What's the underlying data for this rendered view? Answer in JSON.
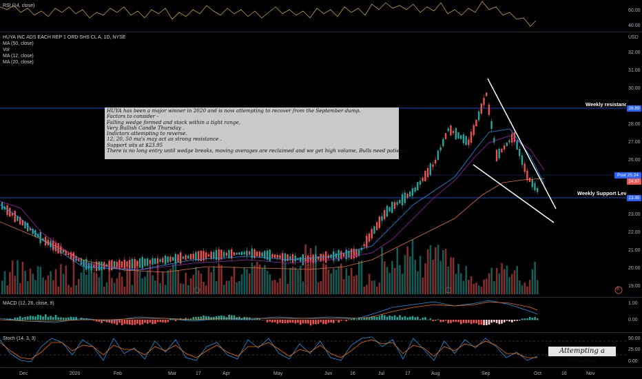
{
  "rsi": {
    "label": "RSI (14, close)",
    "axis": [
      "60.00",
      "40.00"
    ]
  },
  "main": {
    "title": "HUYA INC ADS EACH REP 1 ORD SHS CL A, 1D, NYSE",
    "indicators": [
      "MA (50, close)",
      "Vol",
      "MA (12, close)",
      "MA (20, close)"
    ],
    "currency": "USD",
    "axis": [
      "32.00",
      "31.00",
      "30.00",
      "29.00",
      "28.00",
      "27.00",
      "26.00",
      "25.00",
      "24.00",
      "23.00",
      "22.00",
      "21.00",
      "20.00",
      "19.00"
    ],
    "note": [
      "HUYA has been a major winner in 2020 and is now attempting to recover from the September dump.",
      "Factors to consider -",
      "Falling wedge formed and stock within a tight range,",
      "Very Bullish Candle Thursday .",
      "Indictors attempting to reverse.",
      "12, 20, 50 ma's may act as strong resistance .",
      "Support sits at $23.95",
      "There is no long entry until wedge breaks, moving averages are reclaimed and we get high volume,  Bulls need patience."
    ],
    "weekly_resistance": {
      "label": "Weekly resistance",
      "price": "28.89"
    },
    "weekly_support": {
      "label": "Weekly Support Level",
      "price": "23.95"
    },
    "post": {
      "label": "Post",
      "price": "25.24"
    },
    "last_price": "24.97",
    "markers": [
      "E"
    ]
  },
  "macd": {
    "label": "MACD (12, 26, close, 9)",
    "axis": [
      "1.00",
      "0.00"
    ]
  },
  "stoch": {
    "label": "Stoch (14, 3, 3)",
    "axis": [
      "50.00",
      "25.00",
      "0.00"
    ],
    "annotation": "Attempting a reversal"
  },
  "xaxis": [
    "Dec",
    "2020",
    "Feb",
    "Mar",
    "17",
    "Apr",
    "May",
    "Jun",
    "16",
    "Jul",
    "17",
    "Aug",
    "Sep",
    "Oct",
    "16",
    "Nov"
  ],
  "colors": {
    "up": "#26a69a",
    "down": "#ef5350",
    "resistance": "#2962ff",
    "support": "#2962ff",
    "post": "#2962ff",
    "last": "#ef5350"
  }
}
